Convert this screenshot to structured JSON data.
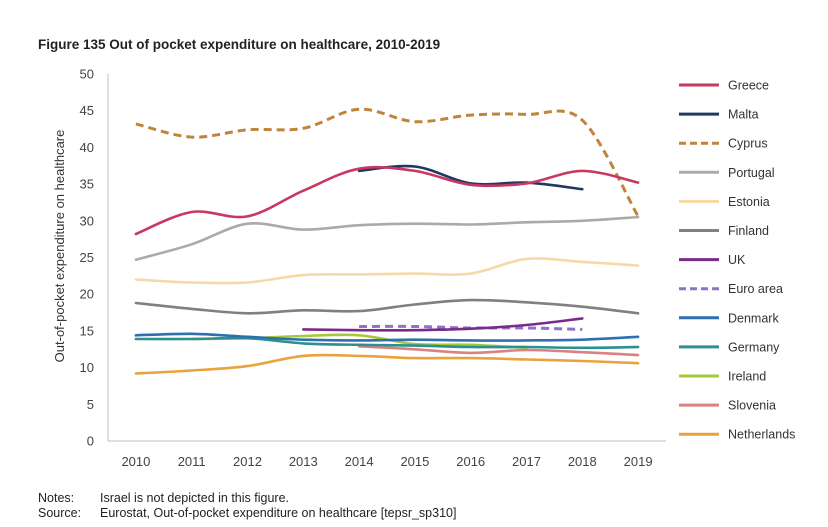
{
  "title": "Figure 135 Out of pocket expenditure on healthcare, 2010-2019",
  "notes": {
    "notes_label": "Notes:",
    "notes_text": "Israel is not depicted in this figure.",
    "source_label": "Source:",
    "source_text": "Eurostat, Out-of-pocket expenditure on healthcare [tepsr_sp310]"
  },
  "chart_data": {
    "type": "line",
    "title": "Figure 135 Out of pocket expenditure on healthcare, 2010-2019",
    "xlabel": "",
    "ylabel": "Out-of-pocket expenditure on healthcare",
    "x": [
      2010,
      2011,
      2012,
      2013,
      2014,
      2015,
      2016,
      2017,
      2018,
      2019
    ],
    "ylim": [
      0,
      50
    ],
    "yticks": [
      0,
      5,
      10,
      15,
      20,
      25,
      30,
      35,
      40,
      45,
      50
    ],
    "grid": false,
    "legend_position": "right",
    "series": [
      {
        "name": "Greece",
        "color": "#c8385f",
        "dash": false,
        "values": [
          28.2,
          31.2,
          30.6,
          34.1,
          37.1,
          36.8,
          34.9,
          35.1,
          36.8,
          35.2
        ]
      },
      {
        "name": "Malta",
        "color": "#1f3864",
        "dash": false,
        "values": [
          null,
          null,
          null,
          null,
          36.8,
          37.4,
          35.1,
          35.2,
          34.3,
          null
        ]
      },
      {
        "name": "Cyprus",
        "color": "#c0843a",
        "dash": true,
        "values": [
          43.2,
          41.4,
          42.4,
          42.6,
          45.2,
          43.5,
          44.4,
          44.5,
          43.7,
          30.6
        ]
      },
      {
        "name": "Portugal",
        "color": "#aaaaaa",
        "dash": false,
        "values": [
          24.7,
          26.8,
          29.6,
          28.8,
          29.4,
          29.6,
          29.5,
          29.8,
          30.0,
          30.5
        ]
      },
      {
        "name": "Estonia",
        "color": "#f6d9a6",
        "dash": false,
        "values": [
          22.0,
          21.6,
          21.6,
          22.6,
          22.7,
          22.8,
          22.8,
          24.8,
          24.4,
          23.9
        ]
      },
      {
        "name": "Finland",
        "color": "#808080",
        "dash": false,
        "values": [
          18.8,
          18.0,
          17.4,
          17.8,
          17.7,
          18.6,
          19.2,
          18.9,
          18.3,
          17.4
        ]
      },
      {
        "name": "UK",
        "color": "#7b2a8c",
        "dash": false,
        "values": [
          null,
          null,
          null,
          15.2,
          15.1,
          15.1,
          15.3,
          15.8,
          16.7,
          null
        ]
      },
      {
        "name": "Euro area",
        "color": "#8d72c8",
        "dash": true,
        "values": [
          null,
          null,
          null,
          null,
          15.6,
          15.6,
          15.4,
          15.4,
          15.2,
          null
        ]
      },
      {
        "name": "Denmark",
        "color": "#2e6fb0",
        "dash": false,
        "values": [
          14.4,
          14.6,
          14.2,
          13.8,
          13.7,
          13.8,
          13.7,
          13.7,
          13.8,
          14.2
        ]
      },
      {
        "name": "Germany",
        "color": "#2f8f8f",
        "dash": false,
        "values": [
          13.9,
          13.9,
          14.0,
          13.3,
          13.1,
          13.0,
          12.8,
          12.8,
          12.7,
          12.8
        ]
      },
      {
        "name": "Ireland",
        "color": "#a6c93a",
        "dash": false,
        "values": [
          null,
          13.9,
          14.0,
          14.3,
          14.4,
          13.2,
          13.1,
          12.7,
          null,
          null
        ]
      },
      {
        "name": "Slovenia",
        "color": "#d98282",
        "dash": false,
        "values": [
          null,
          null,
          null,
          null,
          12.9,
          12.5,
          12.0,
          12.4,
          12.1,
          11.7
        ]
      },
      {
        "name": "Netherlands",
        "color": "#e8a33d",
        "dash": false,
        "values": [
          9.2,
          9.6,
          10.2,
          11.6,
          11.6,
          11.3,
          11.3,
          11.1,
          10.9,
          10.6
        ]
      }
    ]
  }
}
